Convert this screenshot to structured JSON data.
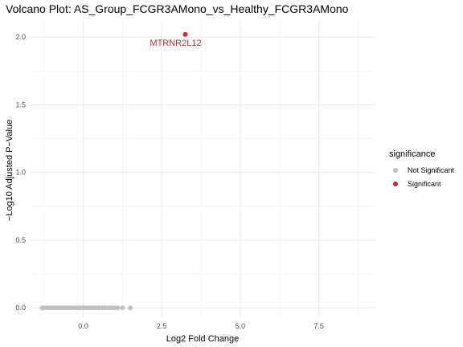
{
  "chart_data": {
    "type": "scatter",
    "title": "Volcano Plot: AS_Group_FCGR3AMono_vs_Healthy_FCGR3AMono",
    "xlabel": "Log2 Fold Change",
    "ylabel": "−Log10 Adjusted P−Value",
    "xlim": [
      -1.7,
      9.3
    ],
    "ylim": [
      -0.07,
      2.12
    ],
    "x_ticks": [
      0,
      2.5,
      5,
      7.5
    ],
    "x_tick_labels": [
      "0.0",
      "2.5",
      "5.0",
      "7.5"
    ],
    "y_ticks": [
      0,
      0.5,
      1,
      1.5,
      2
    ],
    "y_tick_labels": [
      "0.0",
      "0.5",
      "1.0",
      "1.5",
      "2.0"
    ],
    "grid": true,
    "legend": {
      "title": "significance",
      "placement": "right",
      "entries": [
        {
          "label": "Not Significant",
          "color": "#c0c0c0"
        },
        {
          "label": "Significant",
          "color": "#d62728"
        }
      ]
    },
    "series": [
      {
        "name": "Not Significant",
        "color": "#c0c0c0",
        "points": [
          {
            "x": -1.3,
            "y": 0
          },
          {
            "x": -1.2,
            "y": 0
          },
          {
            "x": -1.1,
            "y": 0
          },
          {
            "x": -1.0,
            "y": 0
          },
          {
            "x": -0.9,
            "y": 0
          },
          {
            "x": -0.8,
            "y": 0
          },
          {
            "x": -0.7,
            "y": 0
          },
          {
            "x": -0.6,
            "y": 0
          },
          {
            "x": -0.5,
            "y": 0
          },
          {
            "x": -0.4,
            "y": 0
          },
          {
            "x": -0.3,
            "y": 0
          },
          {
            "x": -0.2,
            "y": 0
          },
          {
            "x": -0.1,
            "y": 0
          },
          {
            "x": 0.0,
            "y": 0
          },
          {
            "x": 0.1,
            "y": 0
          },
          {
            "x": 0.2,
            "y": 0
          },
          {
            "x": 0.3,
            "y": 0
          },
          {
            "x": 0.4,
            "y": 0
          },
          {
            "x": 0.5,
            "y": 0
          },
          {
            "x": 0.6,
            "y": 0
          },
          {
            "x": 0.7,
            "y": 0
          },
          {
            "x": 0.8,
            "y": 0
          },
          {
            "x": 0.9,
            "y": 0
          },
          {
            "x": 1.0,
            "y": 0
          },
          {
            "x": 1.1,
            "y": 0
          },
          {
            "x": 1.25,
            "y": 0
          },
          {
            "x": 1.5,
            "y": 0
          }
        ]
      },
      {
        "name": "Significant",
        "color": "#d62728",
        "points": [
          {
            "x": 3.25,
            "y": 2.02,
            "label": "MTRNR2L12"
          }
        ]
      }
    ]
  }
}
